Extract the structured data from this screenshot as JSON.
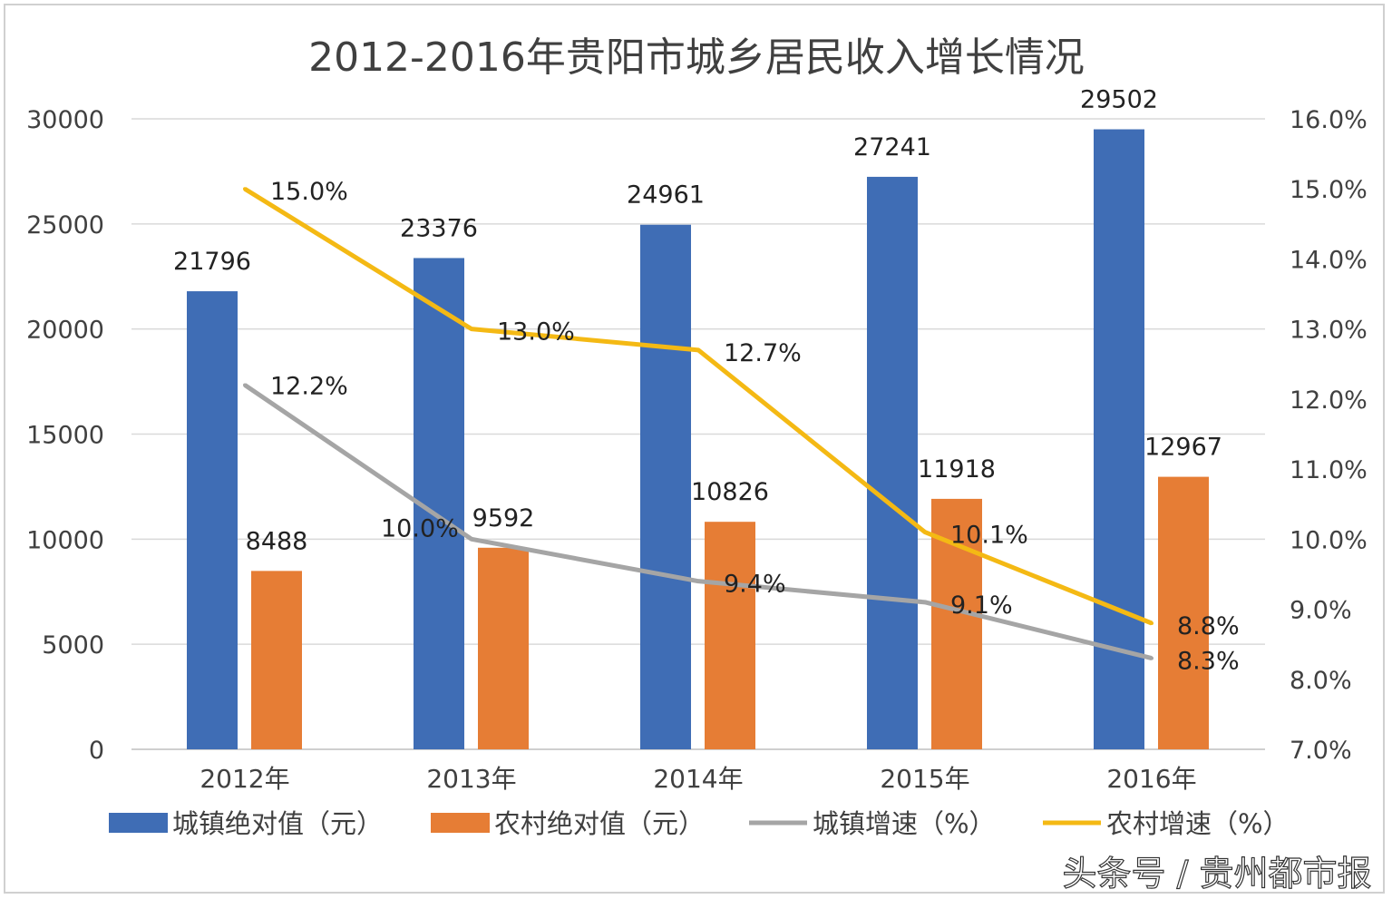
{
  "chart_data": {
    "type": "bar+line",
    "title": "2012-2016年贵阳市城乡居民收入增长情况",
    "categories": [
      "2012年",
      "2013年",
      "2014年",
      "2015年",
      "2016年"
    ],
    "y_left": {
      "range": [
        0,
        30000
      ],
      "ticks": [
        "0",
        "5000",
        "10000",
        "15000",
        "20000",
        "25000",
        "30000"
      ]
    },
    "y_right": {
      "range": [
        7.0,
        16.0
      ],
      "ticks": [
        "7.0%",
        "8.0%",
        "9.0%",
        "10.0%",
        "11.0%",
        "12.0%",
        "13.0%",
        "14.0%",
        "15.0%",
        "16.0%"
      ]
    },
    "grid": true,
    "legend_position": "bottom",
    "series": [
      {
        "name": "城镇绝对值（元）",
        "type": "bar",
        "axis": "left",
        "color": "#3f6db5",
        "values": [
          21796,
          23376,
          24961,
          27241,
          29502
        ],
        "labels": [
          "21796",
          "23376",
          "24961",
          "27241",
          "29502"
        ]
      },
      {
        "name": "农村绝对值（元）",
        "type": "bar",
        "axis": "left",
        "color": "#e67d35",
        "values": [
          8488,
          9592,
          10826,
          11918,
          12967
        ],
        "labels": [
          "8488",
          "9592",
          "10826",
          "11918",
          "12967"
        ]
      },
      {
        "name": "城镇增速（%）",
        "type": "line",
        "axis": "right",
        "color": "#a5a5a5",
        "values": [
          12.2,
          10.0,
          9.4,
          9.1,
          8.3
        ],
        "labels": [
          "12.2%",
          "10.0%",
          "9.4%",
          "9.1%",
          "8.3%"
        ]
      },
      {
        "name": "农村增速（%）",
        "type": "line",
        "axis": "right",
        "color": "#f4b914",
        "values": [
          15.0,
          13.0,
          12.7,
          10.1,
          8.8
        ],
        "labels": [
          "15.0%",
          "13.0%",
          "12.7%",
          "10.1%",
          "8.8%"
        ]
      }
    ]
  },
  "watermark": "头条号 / 贵州都市报"
}
